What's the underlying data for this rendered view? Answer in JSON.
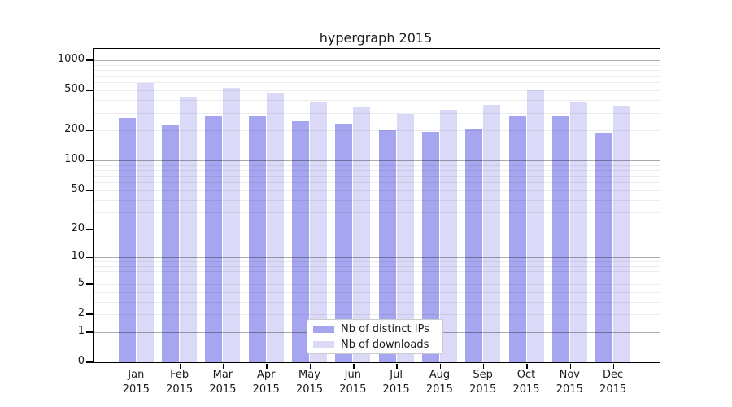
{
  "chart_data": {
    "type": "bar",
    "title": "hypergraph 2015",
    "categories": [
      "Jan",
      "Feb",
      "Mar",
      "Apr",
      "May",
      "Jun",
      "Jul",
      "Aug",
      "Sep",
      "Oct",
      "Nov",
      "Dec"
    ],
    "year_label": "2015",
    "series": [
      {
        "name": "Nb of distinct IPs",
        "color": "#a5a5f0",
        "values": [
          265,
          225,
          275,
          274,
          248,
          232,
          201,
          195,
          206,
          280,
          275,
          190
        ]
      },
      {
        "name": "Nb of downloads",
        "color": "#dadaf8",
        "values": [
          590,
          434,
          528,
          477,
          386,
          337,
          293,
          319,
          361,
          503,
          388,
          353
        ]
      }
    ],
    "yticks": [
      0,
      1,
      2,
      5,
      10,
      20,
      50,
      100,
      200,
      500,
      1000
    ],
    "ylim": [
      0,
      1300
    ],
    "yscale": "log1p",
    "grid": "major-and-minor-horizontal",
    "legend_position": "bottom-center-inside"
  }
}
